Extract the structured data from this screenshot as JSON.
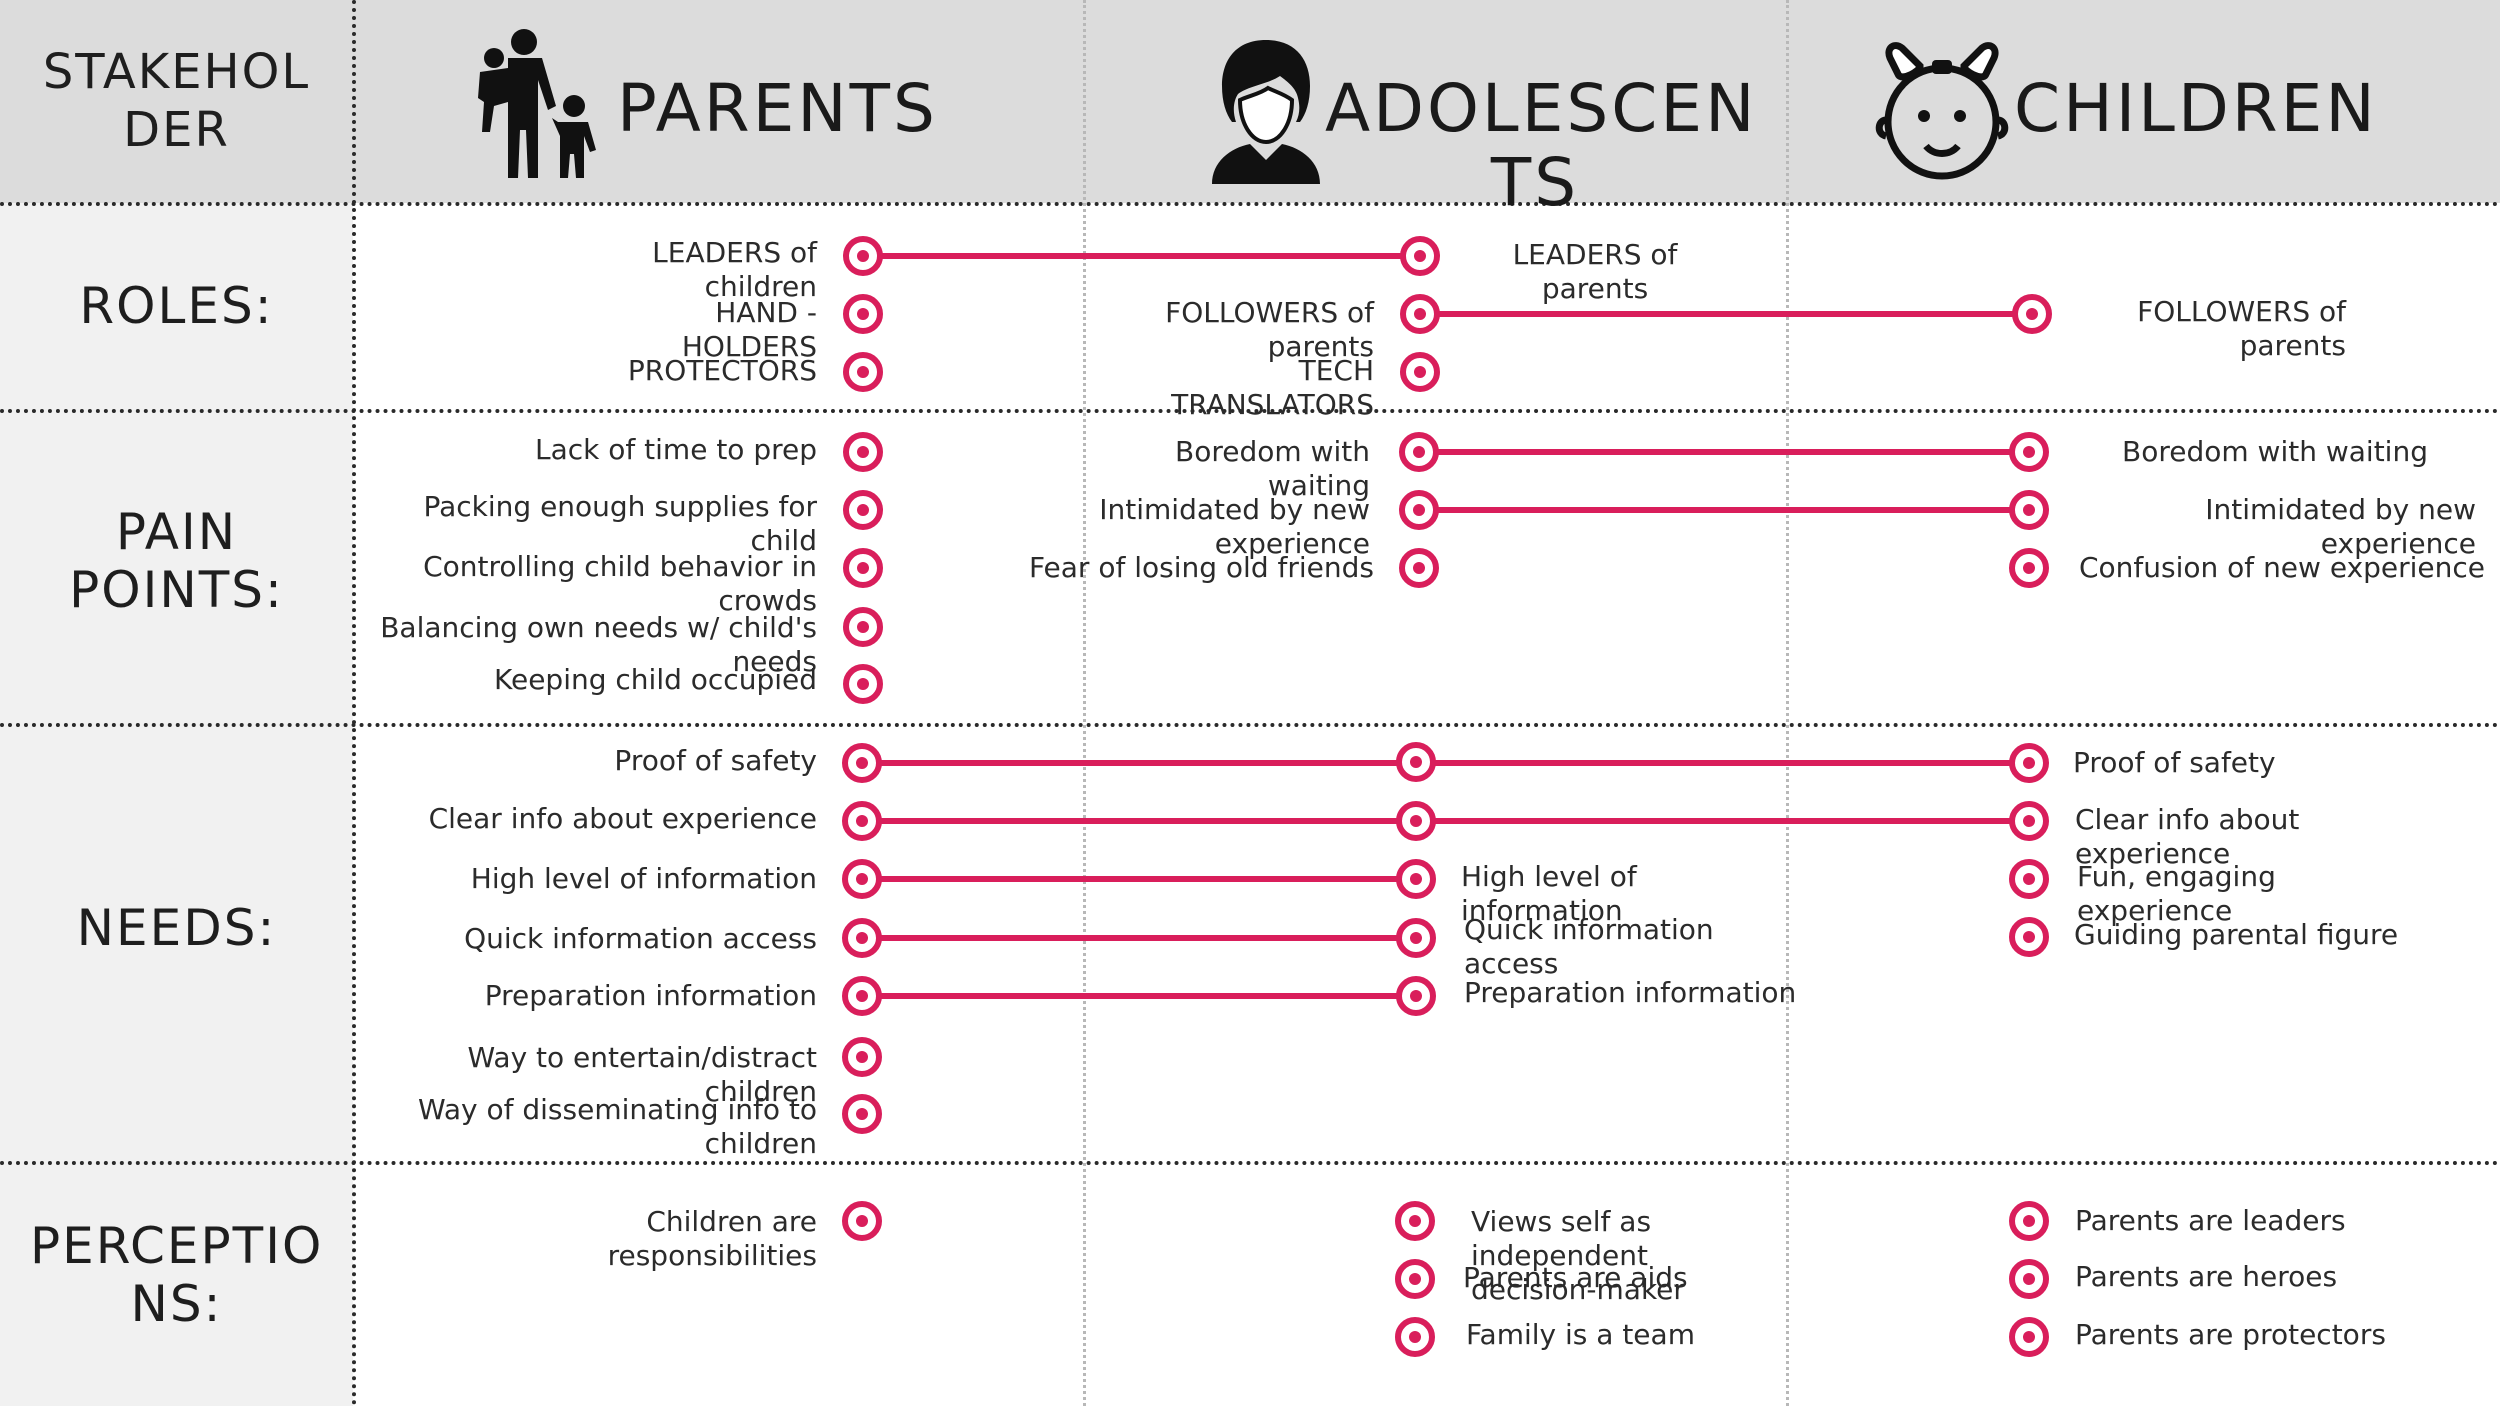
{
  "header": {
    "stakeholder_label": "STAKEHOL DER",
    "columns": {
      "parents": "PARENTS",
      "adolescents": "ADOLESCEN TS",
      "children": "CHILDREN"
    }
  },
  "rows": {
    "roles": "ROLES:",
    "pain_points": "PAIN POINTS:",
    "needs": "NEEDS:",
    "perceptions": "PERCEPTIO NS:"
  },
  "roles": {
    "parents": [
      "LEADERS of children",
      "HAND - HOLDERS",
      "PROTECTORS"
    ],
    "adolescents": [
      "FOLLOWERS of parents",
      "TECH TRANSLATORS"
    ],
    "adolescents_right": "LEADERS of parents",
    "children": [
      "FOLLOWERS of parents"
    ]
  },
  "pain_points": {
    "parents": [
      "Lack of time to prep",
      "Packing enough supplies for child",
      "Controlling child behavior in crowds",
      "Balancing own needs w/ child's needs",
      "Keeping child occupied"
    ],
    "adolescents": [
      "Boredom with waiting",
      "Intimidated by new experience",
      "Fear of losing old friends"
    ],
    "children": [
      "Boredom with waiting",
      "Intimidated by new experience",
      "Confusion of new experience"
    ]
  },
  "needs": {
    "parents": [
      "Proof of safety",
      "Clear info about experience",
      "High level of information",
      "Quick information access",
      "Preparation information",
      "Way to entertain/distract children",
      "Way of disseminating info to children"
    ],
    "adolescents": [
      "High level of information",
      "Quick information access",
      "Preparation information"
    ],
    "children": [
      "Proof of safety",
      "Clear info about experience",
      "Fun, engaging experience",
      "Guiding parental figure"
    ]
  },
  "perceptions": {
    "parents": [
      "Children are responsibilities"
    ],
    "adolescents": [
      "Views self as independent decision-maker",
      "Parents are aids",
      "Family is a team"
    ],
    "children": [
      "Parents are leaders",
      "Parents are heroes",
      "Parents are protectors"
    ]
  },
  "colors": {
    "accent": "#d91e5b",
    "header_band": "#dcdcdc",
    "left_column": "#f1f1f1"
  },
  "icons": {
    "parents": "parent-with-children-icon",
    "adolescents": "adolescent-avatar-icon",
    "children": "child-face-with-bow-icon",
    "marker": "target-icon"
  }
}
